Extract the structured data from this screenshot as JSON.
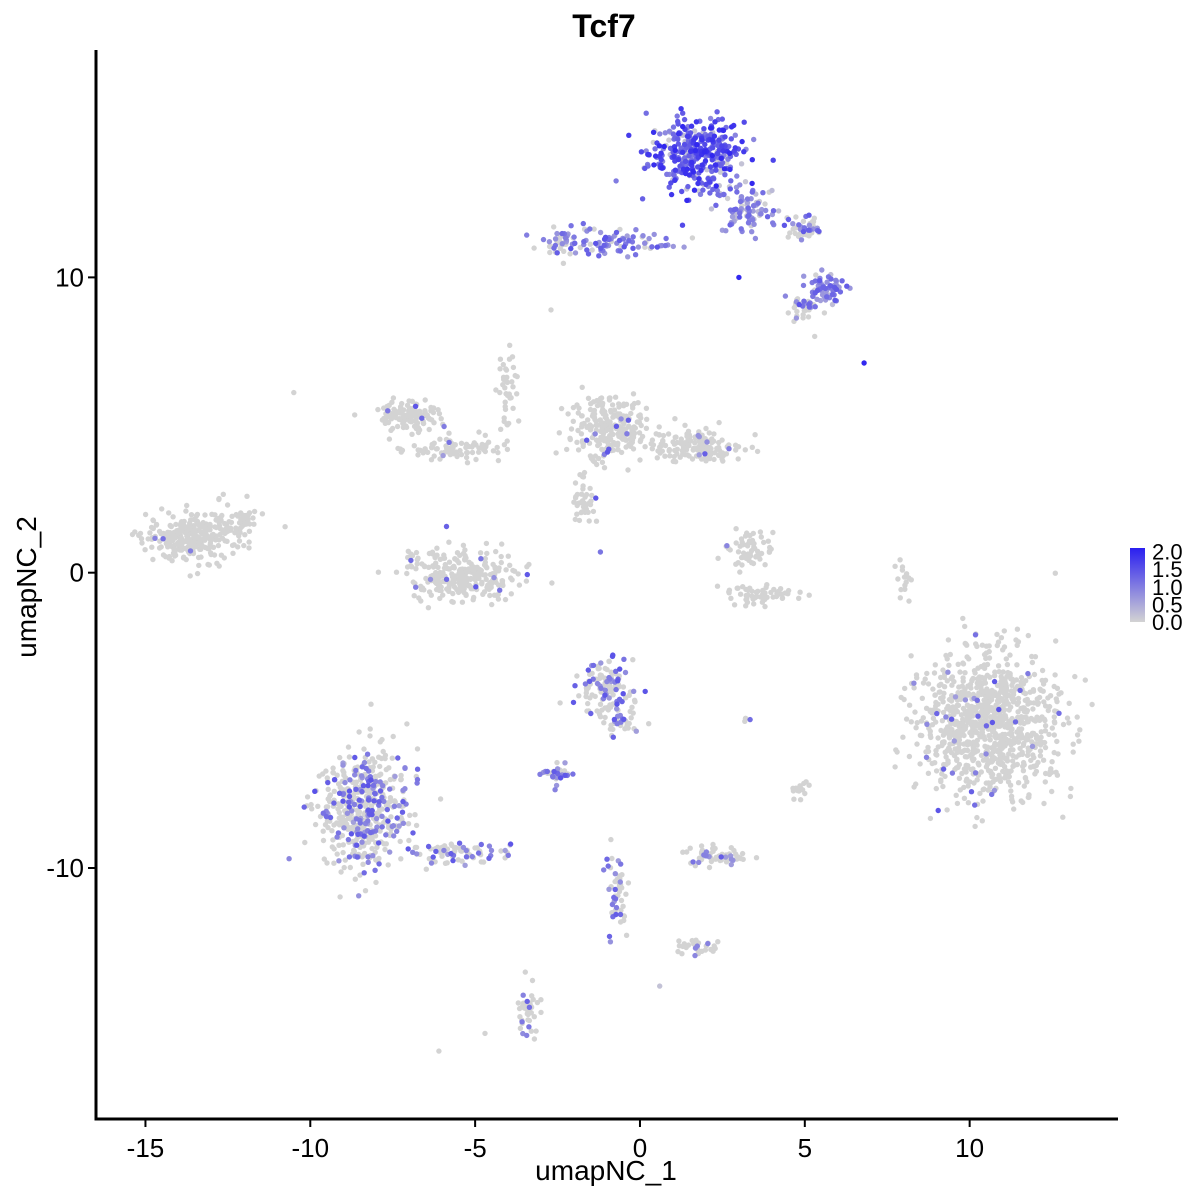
{
  "chart_data": {
    "type": "scatter",
    "title": "Tcf7",
    "xlabel": "umapNC_1",
    "ylabel": "umapNC_2",
    "xlim": [
      -16.5,
      14.5
    ],
    "ylim": [
      -18.5,
      17.7
    ],
    "x_ticks": [
      -15,
      -10,
      -5,
      0,
      5,
      10
    ],
    "x_tick_labels": [
      "-15",
      "-10",
      "-5",
      "0",
      "5",
      "10"
    ],
    "y_ticks": [
      -10,
      0,
      10
    ],
    "y_tick_labels": [
      "-10",
      "0",
      "10"
    ],
    "grid": false,
    "color_scale": {
      "low": "#d3d3d3",
      "high": "#2a1ff0",
      "min": 0,
      "max": 2.1,
      "breaks": [
        2.0,
        1.5,
        1.0,
        0.5,
        0.0
      ],
      "break_labels": [
        "2.0",
        "1.5",
        "1.0",
        "0.5",
        "0.0"
      ]
    },
    "legend_position": "right",
    "clusters": [
      {
        "cx": 1.7,
        "cy": 14.2,
        "rx": 1.3,
        "ry": 1.1,
        "n": 360,
        "expr": 1.55
      },
      {
        "cx": 3.2,
        "cy": 12.3,
        "rx": 0.9,
        "ry": 0.8,
        "n": 90,
        "expr": 1.0
      },
      {
        "cx": 5.6,
        "cy": 9.6,
        "rx": 0.6,
        "ry": 0.5,
        "n": 70,
        "expr": 1.1
      },
      {
        "cx": 4.9,
        "cy": 11.7,
        "rx": 0.5,
        "ry": 0.4,
        "n": 40,
        "expr": 0.4
      },
      {
        "cx": -0.9,
        "cy": 11.2,
        "rx": 1.9,
        "ry": 0.35,
        "n": 90,
        "expr": 0.8
      },
      {
        "cx": -2.4,
        "cy": 11.3,
        "rx": 0.5,
        "ry": 0.5,
        "n": 30,
        "expr": 0.5
      },
      {
        "cx": 4.8,
        "cy": 9.0,
        "rx": 0.5,
        "ry": 0.4,
        "n": 30,
        "expr": 0.2
      },
      {
        "cx": -7.0,
        "cy": 5.3,
        "rx": 0.8,
        "ry": 0.5,
        "n": 120,
        "expr": 0.02
      },
      {
        "cx": -5.5,
        "cy": 4.2,
        "rx": 1.3,
        "ry": 0.35,
        "n": 80,
        "expr": 0.02
      },
      {
        "cx": -4.0,
        "cy": 6.0,
        "rx": 0.3,
        "ry": 1.2,
        "n": 40,
        "expr": 0.02
      },
      {
        "cx": -1.0,
        "cy": 4.9,
        "rx": 1.1,
        "ry": 1.0,
        "n": 240,
        "expr": 0.03
      },
      {
        "cx": 1.7,
        "cy": 4.3,
        "rx": 1.3,
        "ry": 0.5,
        "n": 150,
        "expr": 0.03
      },
      {
        "cx": -1.7,
        "cy": 2.4,
        "rx": 0.4,
        "ry": 0.7,
        "n": 40,
        "expr": 0.02
      },
      {
        "cx": -13.5,
        "cy": 1.2,
        "rx": 1.3,
        "ry": 0.8,
        "n": 290,
        "expr": 0.01
      },
      {
        "cx": -12.0,
        "cy": 1.8,
        "rx": 0.4,
        "ry": 0.4,
        "n": 30,
        "expr": 0.01
      },
      {
        "cx": -5.4,
        "cy": -0.1,
        "rx": 1.5,
        "ry": 0.8,
        "n": 280,
        "expr": 0.03
      },
      {
        "cx": 3.4,
        "cy": 0.8,
        "rx": 0.6,
        "ry": 0.6,
        "n": 60,
        "expr": 0.01
      },
      {
        "cx": 3.6,
        "cy": -0.7,
        "rx": 1.0,
        "ry": 0.3,
        "n": 60,
        "expr": 0.01
      },
      {
        "cx": 10.6,
        "cy": -5.2,
        "rx": 1.9,
        "ry": 2.2,
        "n": 950,
        "expr": 0.02
      },
      {
        "cx": -1.1,
        "cy": -3.9,
        "rx": 0.8,
        "ry": 0.8,
        "n": 120,
        "expr": 0.3
      },
      {
        "cx": -0.6,
        "cy": -5.0,
        "rx": 0.6,
        "ry": 0.5,
        "n": 40,
        "expr": 0.2
      },
      {
        "cx": -2.5,
        "cy": -6.8,
        "rx": 0.4,
        "ry": 0.3,
        "n": 40,
        "expr": 0.4
      },
      {
        "cx": -8.4,
        "cy": -8.0,
        "rx": 1.2,
        "ry": 1.8,
        "n": 520,
        "expr": 0.25
      },
      {
        "cx": -5.6,
        "cy": -9.5,
        "rx": 1.3,
        "ry": 0.4,
        "n": 80,
        "expr": 0.25
      },
      {
        "cx": 2.4,
        "cy": -9.6,
        "rx": 0.8,
        "ry": 0.35,
        "n": 60,
        "expr": 0.2
      },
      {
        "cx": -0.7,
        "cy": -10.8,
        "rx": 0.3,
        "ry": 1.3,
        "n": 50,
        "expr": 0.3
      },
      {
        "cx": 1.8,
        "cy": -12.7,
        "rx": 0.6,
        "ry": 0.25,
        "n": 30,
        "expr": 0.2
      },
      {
        "cx": -3.4,
        "cy": -14.8,
        "rx": 0.3,
        "ry": 0.9,
        "n": 40,
        "expr": 0.2
      },
      {
        "cx": 8.0,
        "cy": -0.2,
        "rx": 0.2,
        "ry": 0.6,
        "n": 15,
        "expr": 0.01
      },
      {
        "cx": 4.9,
        "cy": -7.4,
        "rx": 0.3,
        "ry": 0.3,
        "n": 15,
        "expr": 0.01
      },
      {
        "cx": 3.2,
        "cy": -5.0,
        "rx": 0.15,
        "ry": 0.1,
        "n": 4,
        "expr": 0.3
      }
    ],
    "outliers": [
      {
        "x": 6.8,
        "y": 7.1,
        "expr": 2.0
      },
      {
        "x": -10.5,
        "y": 6.1,
        "expr": 0.0
      },
      {
        "x": -6.1,
        "y": -16.2,
        "expr": 0.0
      },
      {
        "x": -4.7,
        "y": -15.6,
        "expr": 0.0
      },
      {
        "x": 0.6,
        "y": -14.0,
        "expr": 0.2
      },
      {
        "x": -2.7,
        "y": 8.9,
        "expr": 0.0
      },
      {
        "x": -1.2,
        "y": 0.7,
        "expr": 1.1
      },
      {
        "x": 2.7,
        "y": 4.2,
        "expr": 1.0
      },
      {
        "x": 3.0,
        "y": 10.0,
        "expr": 2.0
      },
      {
        "x": 5.3,
        "y": 8.0,
        "expr": 0.0
      }
    ]
  }
}
